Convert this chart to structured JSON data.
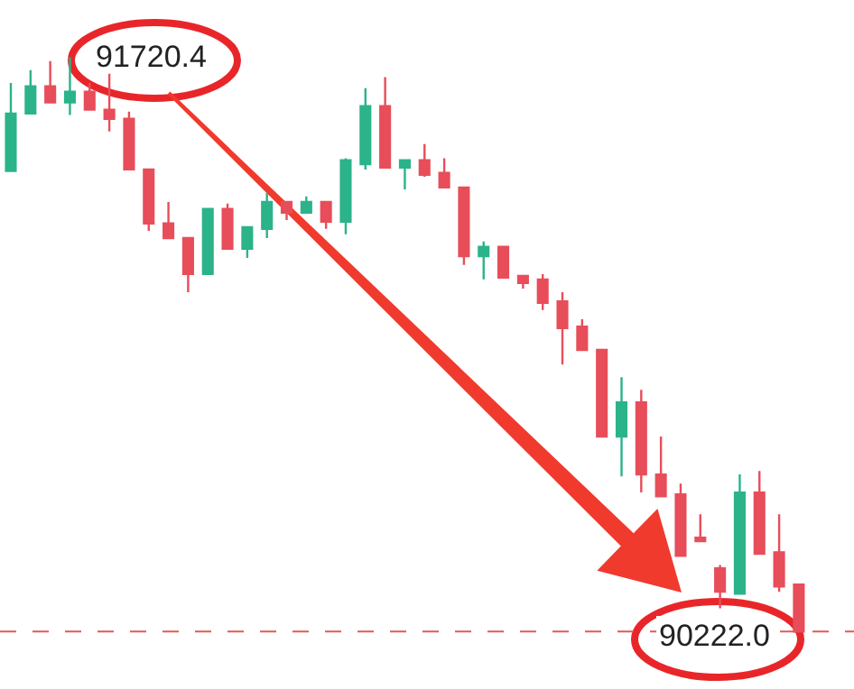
{
  "chart_data": {
    "type": "candlestick",
    "categories": [
      null,
      null,
      null,
      null,
      null,
      null,
      null,
      null,
      null,
      null,
      null,
      null,
      null,
      null,
      null,
      null,
      null,
      null,
      null,
      null,
      null,
      null,
      null,
      null,
      null,
      null,
      null,
      null,
      null,
      null,
      null,
      null,
      null,
      null,
      null,
      null,
      null,
      null,
      null,
      null,
      null
    ],
    "ohlc": [
      [
        91424,
        91654,
        91424,
        91574
      ],
      [
        91574,
        91687,
        91574,
        91645
      ],
      [
        91645,
        91711,
        91603,
        91603
      ],
      [
        91603,
        91720.4,
        91570,
        91631
      ],
      [
        91631,
        91654,
        91584,
        91584
      ],
      [
        91584,
        91678,
        91527,
        91560
      ],
      [
        91560,
        91579,
        91428,
        91428
      ],
      [
        91428,
        91428,
        91268,
        91287
      ],
      [
        91287,
        91343,
        91249,
        91249
      ],
      [
        91249,
        91249,
        91108,
        91155
      ],
      [
        91155,
        91325,
        91155,
        91325
      ],
      [
        91325,
        91339,
        91221,
        91221
      ],
      [
        91221,
        91277,
        91197,
        91277
      ],
      [
        91273,
        91367,
        91249,
        91343
      ],
      [
        91343,
        91343,
        91296,
        91315
      ],
      [
        91315,
        91358,
        91315,
        91343
      ],
      [
        91343,
        91343,
        91273,
        91292
      ],
      [
        91292,
        91457,
        91259,
        91452
      ],
      [
        91442,
        91640,
        91428,
        91593
      ],
      [
        91593,
        91669,
        91433,
        91433
      ],
      [
        91433,
        91452,
        91376,
        91452
      ],
      [
        91452,
        91494,
        91409,
        91414
      ],
      [
        91419,
        91457,
        91381,
        91381
      ],
      [
        91381,
        91381,
        91179,
        91202
      ],
      [
        91202,
        91240,
        91141,
        91226
      ],
      [
        91226,
        91226,
        91146,
        91146
      ],
      [
        91150,
        91150,
        91117,
        91132
      ],
      [
        91141,
        91155,
        91061,
        91080
      ],
      [
        91084,
        91108,
        90919,
        91014
      ],
      [
        91018,
        91037,
        90957,
        90957
      ],
      [
        90957,
        90957,
        90731,
        90731
      ],
      [
        90731,
        90886,
        90627,
        90820
      ],
      [
        90820,
        90853,
        90585,
        90632
      ],
      [
        90632,
        90731,
        90575,
        90575
      ],
      [
        90580,
        90608,
        90420,
        90420
      ],
      [
        90467,
        90528,
        90458,
        90458
      ],
      [
        90387,
        90396,
        90283,
        90326
      ],
      [
        90321,
        90632,
        90321,
        90585
      ],
      [
        90585,
        90641,
        90425,
        90425
      ],
      [
        90429,
        90528,
        90326,
        90340
      ],
      [
        90345,
        90345,
        90222.0,
        90222.0
      ]
    ],
    "colors": [
      "#2bb38a",
      "#2bb38a",
      "#e84d5a",
      "#2bb38a",
      "#e84d5a",
      "#e84d5a",
      "#e84d5a",
      "#e84d5a",
      "#e84d5a",
      "#e84d5a",
      "#2bb38a",
      "#e84d5a",
      "#2bb38a",
      "#2bb38a",
      "#e84d5a",
      "#2bb38a",
      "#e84d5a",
      "#2bb38a",
      "#2bb38a",
      "#e84d5a",
      "#2bb38a",
      "#e84d5a",
      "#e84d5a",
      "#e84d5a",
      "#2bb38a",
      "#e84d5a",
      "#e84d5a",
      "#e84d5a",
      "#e84d5a",
      "#e84d5a",
      "#e84d5a",
      "#2bb38a",
      "#e84d5a",
      "#e84d5a",
      "#e84d5a",
      "#e84d5a",
      "#e84d5a",
      "#2bb38a",
      "#e84d5a",
      "#e84d5a",
      "#e84d5a"
    ],
    "annotations": [
      "91720.4"
    ],
    "ref_lines": [
      {
        "axis": "y",
        "value": 90222.0,
        "label": "90222.0",
        "color": "#e05a5a",
        "line_style": "dashed"
      }
    ],
    "tick_labels": false
  }
}
